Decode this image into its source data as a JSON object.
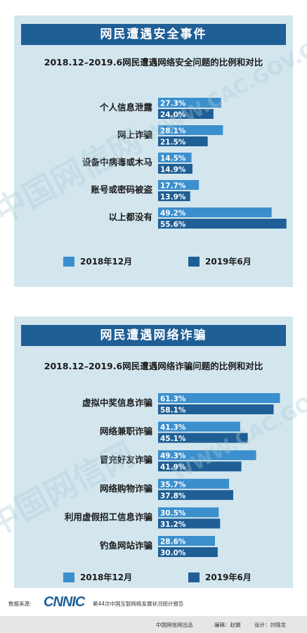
{
  "colors": {
    "series_2018": "#3b8fcd",
    "series_2019": "#1f5f95",
    "panel_bg": "#d3e6ee",
    "title_bg": "#1f5f95"
  },
  "watermarks": [
    "中国网信网",
    "WWW.CAC.GOV.CN",
    "中国网信网",
    "WWW.CAC.GOV.CN"
  ],
  "security": {
    "banner": "网民遭遇安全事件",
    "subtitle": "2018.12–2019.6网民遭遇网络安全问题的比例和对比",
    "legend": [
      "2018年12月",
      "2019年6月"
    ],
    "value_labels": [
      [
        "27.3%",
        "24.0%"
      ],
      [
        "28.1%",
        "21.5%"
      ],
      [
        "14.5%",
        "14.9%"
      ],
      [
        "17.7%",
        "13.9%"
      ],
      [
        "49.2%",
        "55.6%"
      ]
    ]
  },
  "fraud": {
    "banner": "网民遭遇网络诈骗",
    "subtitle": "2018.12–2019.6网民遭遇网络诈骗问题的比例和对比",
    "legend": [
      "2018年12月",
      "2019年6月"
    ],
    "value_labels": [
      [
        "61.3%",
        "58.1%"
      ],
      [
        "41.3%",
        "45.1%"
      ],
      [
        "49.3%",
        "41.9%"
      ],
      [
        "35.7%",
        "37.8%"
      ],
      [
        "30.5%",
        "31.2%"
      ],
      [
        "28.6%",
        "30.0%"
      ]
    ]
  },
  "chart_data": [
    {
      "type": "bar",
      "orientation": "horizontal",
      "title": "2018.12–2019.6网民遭遇网络安全问题的比例和对比",
      "categories": [
        "个人信息泄露",
        "网上诈骗",
        "设备中病毒或木马",
        "账号或密码被盗",
        "以上都没有"
      ],
      "series": [
        {
          "name": "2018年12月",
          "values": [
            27.3,
            28.1,
            14.5,
            17.7,
            49.2
          ]
        },
        {
          "name": "2019年6月",
          "values": [
            24.0,
            21.5,
            14.9,
            13.9,
            55.6
          ]
        }
      ],
      "xlim": [
        0,
        56
      ],
      "unit": "%",
      "legend": "bottom",
      "grid": false
    },
    {
      "type": "bar",
      "orientation": "horizontal",
      "title": "2018.12–2019.6网民遭遇网络诈骗问题的比例和对比",
      "categories": [
        "虚拟中奖信息诈骗",
        "网络兼职诈骗",
        "冒充好友诈骗",
        "网络购物诈骗",
        "利用虚假招工信息诈骗",
        "钓鱼网站诈骗"
      ],
      "series": [
        {
          "name": "2018年12月",
          "values": [
            61.3,
            41.3,
            49.3,
            35.7,
            30.5,
            28.6
          ]
        },
        {
          "name": "2019年6月",
          "values": [
            58.1,
            45.1,
            41.9,
            37.8,
            31.2,
            30.0
          ]
        }
      ],
      "xlim": [
        0,
        65
      ],
      "unit": "%",
      "legend": "bottom",
      "grid": false
    }
  ],
  "footer": {
    "source_label": "数据来源:",
    "logo_text": "CNNIC",
    "source_report": "第44次中国互联网络发展状况统计报告",
    "producer": "中国网信网出品",
    "editor": "编辑：赵娟",
    "designer": "设计：刘晓龙"
  }
}
